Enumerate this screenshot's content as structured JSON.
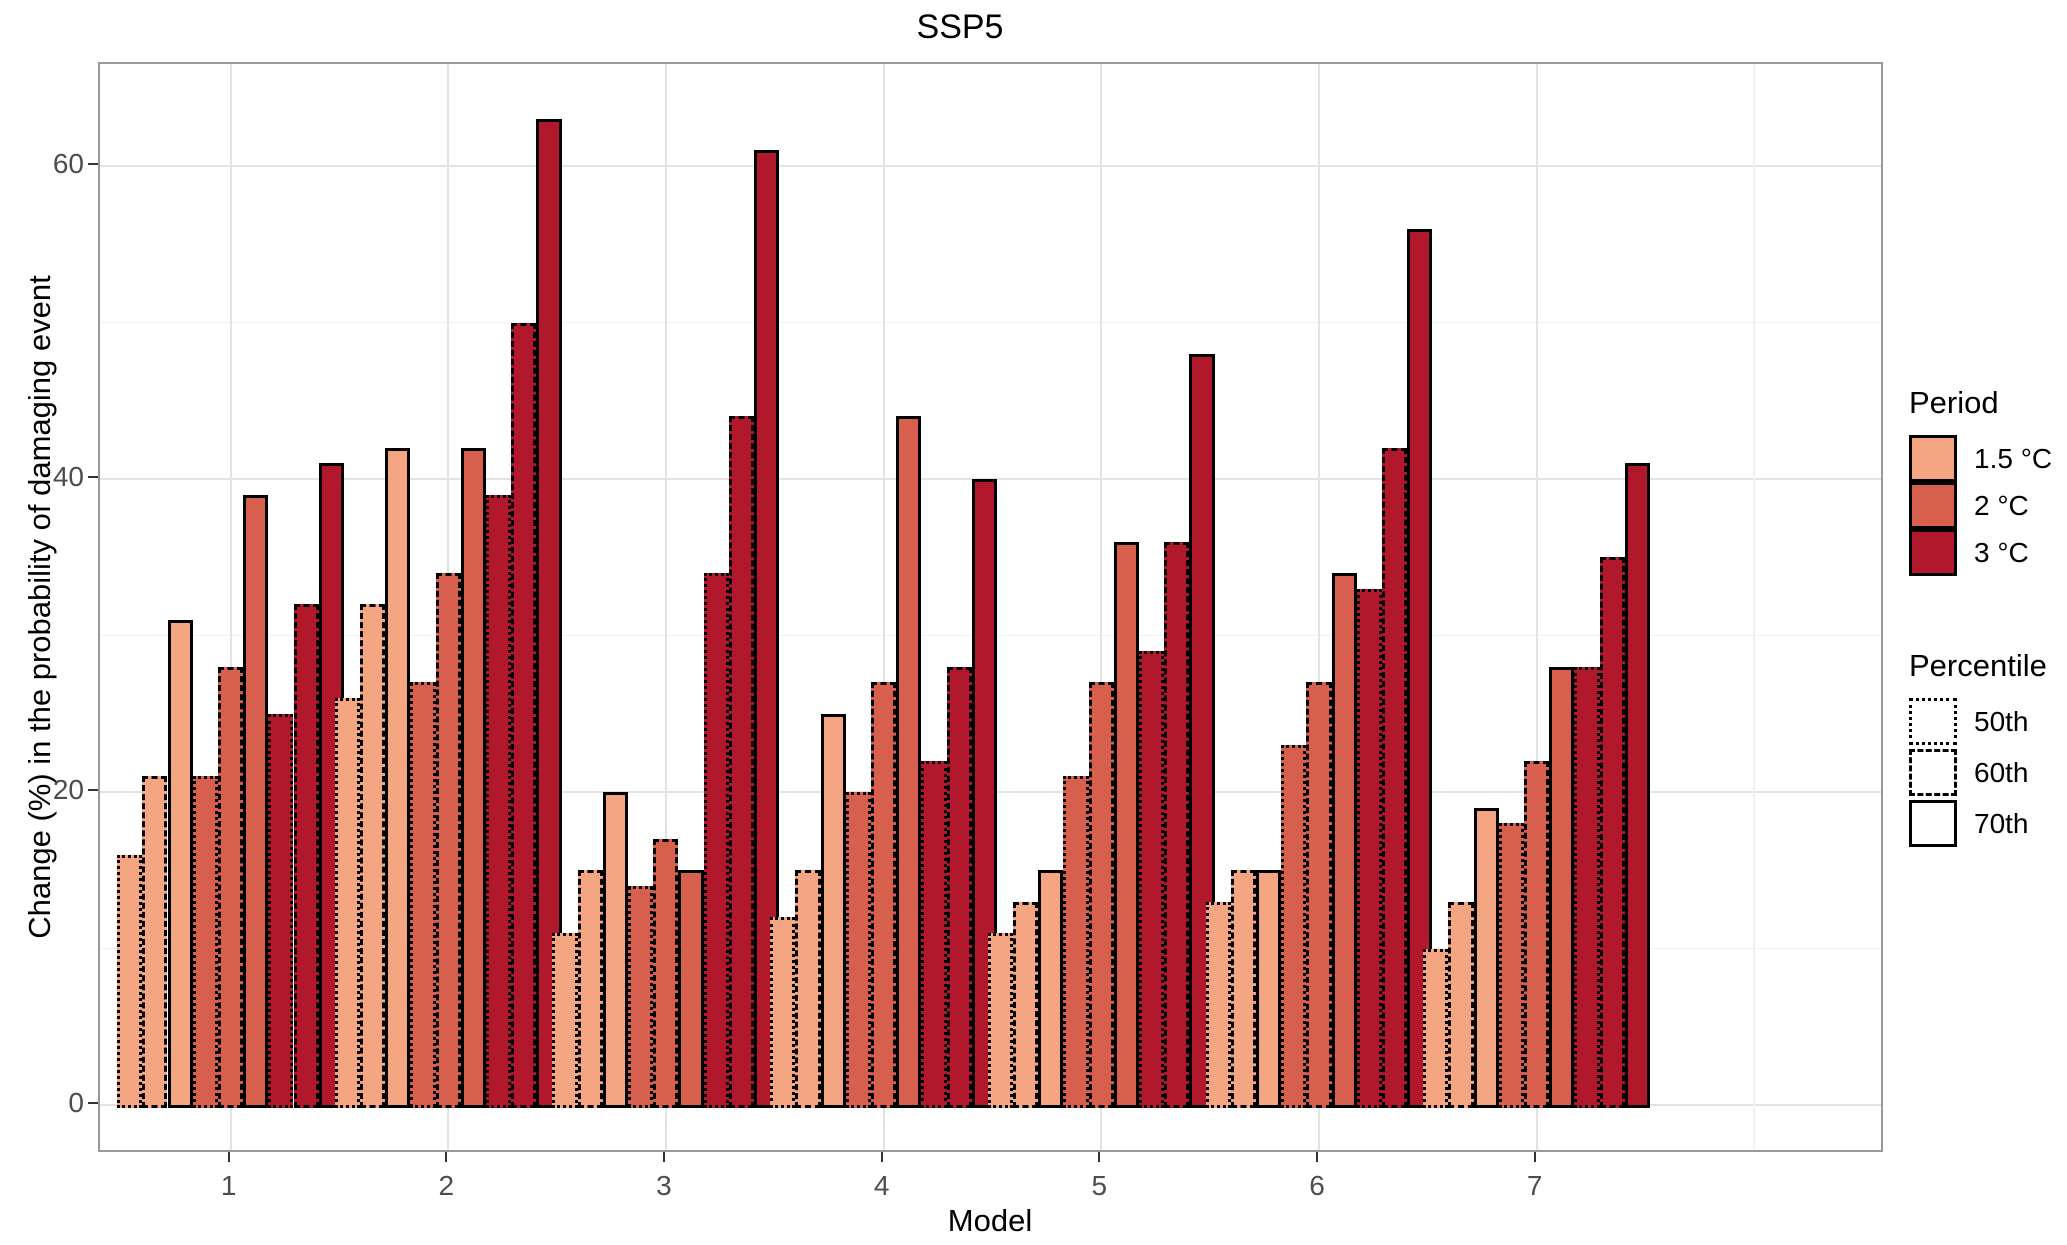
{
  "title": "SSP5",
  "axes": {
    "y_label": "Change (%) in the probability of damaging event",
    "x_label": "Model",
    "y_ticks": [
      "0",
      "20",
      "40",
      "60"
    ],
    "x_ticks": [
      "1",
      "2",
      "3",
      "4",
      "5",
      "6",
      "7"
    ]
  },
  "legend": {
    "period_title": "Period",
    "period_items": [
      {
        "label": "1.5 °C",
        "color": "#F4A582"
      },
      {
        "label": "2 °C",
        "color": "#D6604D"
      },
      {
        "label": "3 °C",
        "color": "#B2182B"
      }
    ],
    "percentile_title": "Percentile",
    "percentile_items": [
      {
        "label": "50th",
        "style": "dotted"
      },
      {
        "label": "60th",
        "style": "dashed"
      },
      {
        "label": "70th",
        "style": "solid"
      }
    ]
  },
  "colors": {
    "grid_major": "#E3E3E3",
    "grid_minor": "#F1F1F1",
    "panel_border": "#999999",
    "tick_mark": "#333333",
    "tick_label": "#4D4D4D",
    "bar_border": "#000000",
    "background": "#FFFFFF"
  },
  "chart_data": {
    "type": "bar",
    "title": "SSP5",
    "xlabel": "Model",
    "ylabel": "Change (%) in the probability of damaging event",
    "categories": [
      "1",
      "2",
      "3",
      "4",
      "5",
      "6",
      "7"
    ],
    "ylim": [
      0,
      63
    ],
    "y_major_ticks": [
      0,
      20,
      40,
      60
    ],
    "y_minor_ticks": [
      10,
      30,
      50
    ],
    "grid": true,
    "legend_position": "right",
    "group_order_note": "9 bars per category: period-major, percentile-minor, left to right",
    "series": [
      {
        "period": "1.5 °C",
        "percentile": "50th",
        "color": "#F4A582",
        "border_style": "dotted",
        "values": [
          16,
          26,
          11,
          12,
          11,
          13,
          10
        ]
      },
      {
        "period": "1.5 °C",
        "percentile": "60th",
        "color": "#F4A582",
        "border_style": "dashed",
        "values": [
          21,
          32,
          15,
          15,
          13,
          15,
          13
        ]
      },
      {
        "period": "1.5 °C",
        "percentile": "70th",
        "color": "#F4A582",
        "border_style": "solid",
        "values": [
          31,
          42,
          20,
          25,
          15,
          15,
          19
        ]
      },
      {
        "period": "2 °C",
        "percentile": "50th",
        "color": "#D6604D",
        "border_style": "dotted",
        "values": [
          21,
          27,
          14,
          20,
          21,
          23,
          18
        ]
      },
      {
        "period": "2 °C",
        "percentile": "60th",
        "color": "#D6604D",
        "border_style": "dashed",
        "values": [
          28,
          34,
          17,
          27,
          27,
          27,
          22
        ]
      },
      {
        "period": "2 °C",
        "percentile": "70th",
        "color": "#D6604D",
        "border_style": "solid",
        "values": [
          39,
          42,
          15,
          44,
          36,
          34,
          28
        ]
      },
      {
        "period": "3 °C",
        "percentile": "50th",
        "color": "#B2182B",
        "border_style": "dotted",
        "values": [
          25,
          39,
          34,
          22,
          29,
          33,
          28
        ]
      },
      {
        "period": "3 °C",
        "percentile": "60th",
        "color": "#B2182B",
        "border_style": "dashed",
        "values": [
          32,
          50,
          44,
          28,
          36,
          42,
          35
        ]
      },
      {
        "period": "3 °C",
        "percentile": "70th",
        "color": "#B2182B",
        "border_style": "solid",
        "values": [
          41,
          63,
          61,
          40,
          48,
          56,
          41
        ]
      }
    ]
  }
}
